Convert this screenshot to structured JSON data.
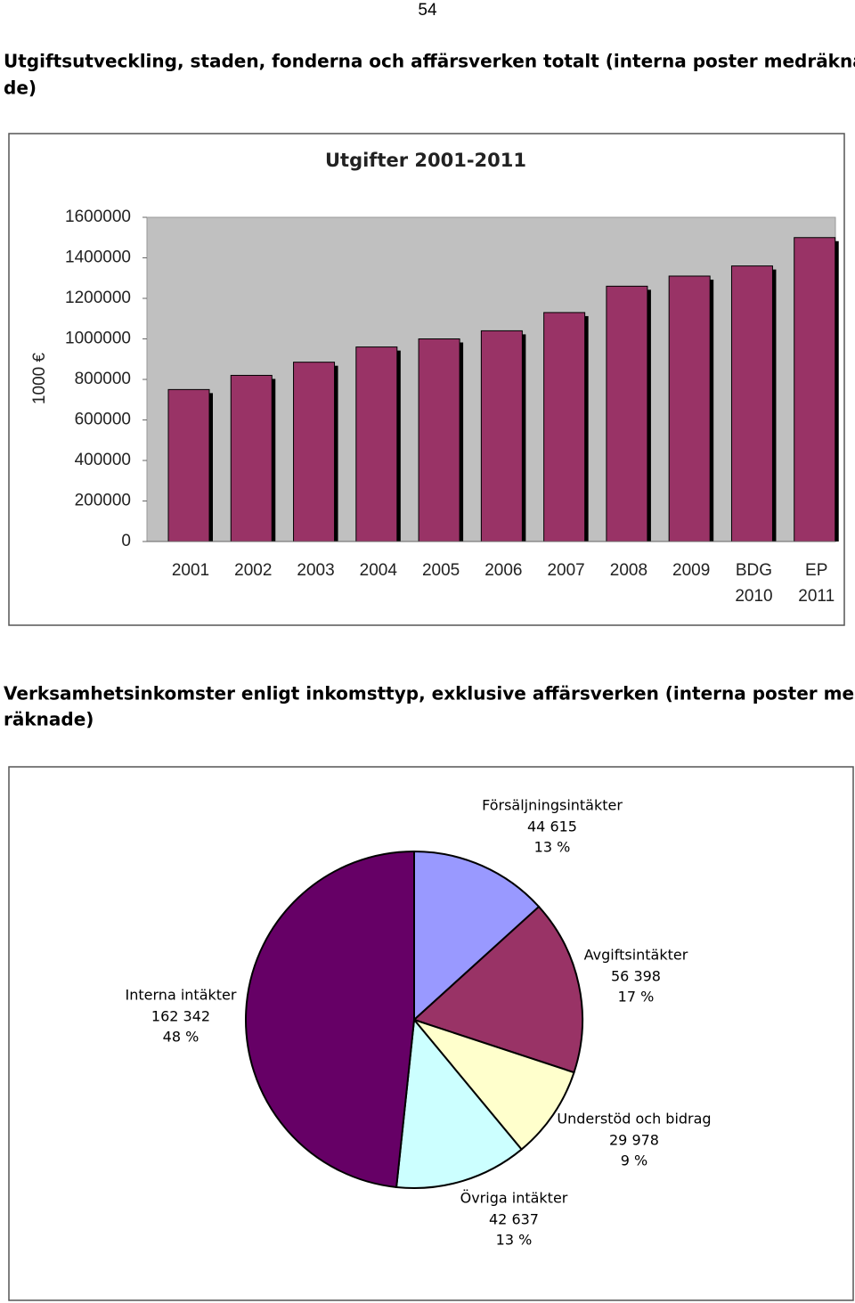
{
  "page_number": "54",
  "heading1": [
    "Utgiftsutveckling, staden, fonderna och affärsverken totalt (interna poster medräkna-",
    "de)"
  ],
  "heading2": [
    "Verksamhetsinkomster enligt inkomsttyp, exklusive affärsverken (interna poster med-",
    "räknade)"
  ],
  "chart_data": [
    {
      "type": "bar",
      "title": "Utgifter 2001-2011",
      "ylabel": "1000 €",
      "categories": [
        "2001",
        "2002",
        "2003",
        "2004",
        "2005",
        "2006",
        "2007",
        "2008",
        "2009",
        "BDG 2010",
        "EP 2011"
      ],
      "values": [
        750000,
        820000,
        885000,
        960000,
        1000000,
        1040000,
        1130000,
        1260000,
        1310000,
        1360000,
        1500000
      ],
      "color": "#993366",
      "background": "#c0c0c0",
      "ylim": [
        0,
        1600000
      ],
      "yticks": [
        0,
        200000,
        400000,
        600000,
        800000,
        1000000,
        1200000,
        1400000,
        1600000
      ]
    },
    {
      "type": "pie",
      "categories": [
        "Försäljningsintäkter",
        "Avgiftsintäkter",
        "Understöd och bidrag",
        "Övriga intäkter",
        "Interna intäkter"
      ],
      "values": [
        44615,
        56398,
        29978,
        42637,
        162342
      ],
      "value_labels": [
        "44 615",
        "56 398",
        "29 978",
        "42 637",
        "162 342"
      ],
      "percent_labels": [
        "13 %",
        "17 %",
        "9 %",
        "13 %",
        "48 %"
      ],
      "colors": [
        "#9999ff",
        "#993366",
        "#ffffcc",
        "#ccffff",
        "#660066"
      ]
    }
  ]
}
